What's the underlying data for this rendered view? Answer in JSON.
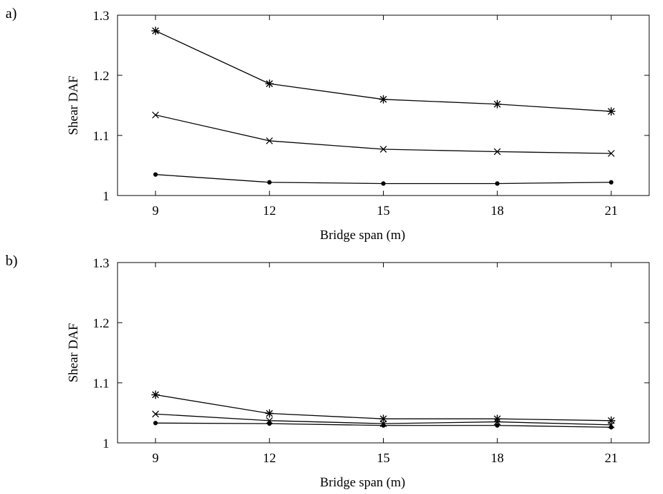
{
  "chart_data": [
    {
      "type": "line",
      "panel_label": "a)",
      "xlabel": "Bridge span (m)",
      "ylabel": "Shear DAF",
      "xlim": [
        8,
        22
      ],
      "ylim": [
        1,
        1.3
      ],
      "x_ticks": [
        9,
        12,
        15,
        18,
        21
      ],
      "y_ticks": [
        1,
        1.1,
        1.2,
        1.3
      ],
      "x_tick_labels": [
        "9",
        "12",
        "15",
        "18",
        "21"
      ],
      "y_tick_labels": [
        "1",
        "1.1",
        "1.2",
        "1.3"
      ],
      "grid": false,
      "legend": "none",
      "x": [
        9,
        12,
        15,
        18,
        21
      ],
      "series": [
        {
          "marker": "asterisk",
          "values": [
            1.274,
            1.186,
            1.16,
            1.152,
            1.14
          ]
        },
        {
          "marker": "cross",
          "values": [
            1.134,
            1.091,
            1.077,
            1.073,
            1.07
          ]
        },
        {
          "marker": "dot",
          "values": [
            1.035,
            1.022,
            1.02,
            1.02,
            1.022
          ]
        }
      ]
    },
    {
      "type": "line",
      "panel_label": "b)",
      "xlabel": "Bridge span (m)",
      "ylabel": "Shear DAF",
      "xlim": [
        8,
        22
      ],
      "ylim": [
        1,
        1.3
      ],
      "x_ticks": [
        9,
        12,
        15,
        18,
        21
      ],
      "y_ticks": [
        1,
        1.1,
        1.2,
        1.3
      ],
      "x_tick_labels": [
        "9",
        "12",
        "15",
        "18",
        "21"
      ],
      "y_tick_labels": [
        "1",
        "1.1",
        "1.2",
        "1.3"
      ],
      "grid": false,
      "legend": "none",
      "x": [
        9,
        12,
        15,
        18,
        21
      ],
      "series": [
        {
          "marker": "asterisk",
          "values": [
            1.08,
            1.049,
            1.04,
            1.04,
            1.037
          ]
        },
        {
          "marker": "cross",
          "values": [
            1.048,
            1.037,
            1.032,
            1.035,
            1.03
          ]
        },
        {
          "marker": "dot",
          "values": [
            1.033,
            1.032,
            1.029,
            1.029,
            1.026
          ]
        }
      ]
    }
  ]
}
